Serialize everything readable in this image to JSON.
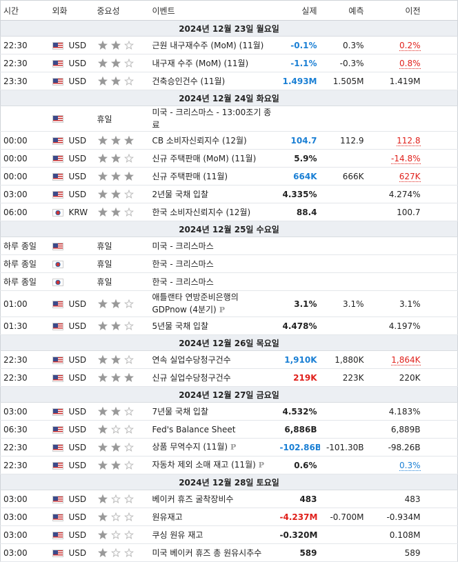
{
  "header": {
    "time": "시간",
    "currency": "외화",
    "importance": "중요성",
    "event": "이벤트",
    "actual": "실제",
    "forecast": "예측",
    "previous": "이전"
  },
  "days": [
    {
      "label": "2024년 12월 23일 월요일",
      "events": [
        {
          "time": "22:30",
          "flag": "us",
          "currency": "USD",
          "importance": 2,
          "event": "근원 내구재수주 (MoM) (11월)",
          "actual": "-0.1%",
          "actual_color": "#1a7fd4",
          "forecast": "0.3%",
          "previous": "0.2%",
          "previous_color": "#e0201b"
        },
        {
          "time": "22:30",
          "flag": "us",
          "currency": "USD",
          "importance": 2,
          "event": "내구재 수주 (MoM) (11월)",
          "actual": "-1.1%",
          "actual_color": "#1a7fd4",
          "forecast": "-0.3%",
          "previous": "0.8%",
          "previous_color": "#e0201b"
        },
        {
          "time": "23:30",
          "flag": "us",
          "currency": "USD",
          "importance": 2,
          "event": "건축승인건수 (11월)",
          "actual": "1.493M",
          "actual_color": "#1a7fd4",
          "forecast": "1.505M",
          "previous": "1.419M"
        }
      ]
    },
    {
      "label": "2024년 12월 24일 화요일",
      "events": [
        {
          "flag": "us",
          "holiday": "휴일",
          "event": "미국 - 크리스마스 - 13:00조기 종료"
        },
        {
          "time": "00:00",
          "flag": "us",
          "currency": "USD",
          "importance": 3,
          "event": "CB 소비자신뢰지수 (12월)",
          "actual": "104.7",
          "actual_color": "#1a7fd4",
          "forecast": "112.9",
          "previous": "112.8",
          "previous_color": "#e0201b"
        },
        {
          "time": "00:00",
          "flag": "us",
          "currency": "USD",
          "importance": 2,
          "event": "신규 주택판매 (MoM) (11월)",
          "actual": "5.9%",
          "previous": "-14.8%",
          "previous_color": "#e0201b"
        },
        {
          "time": "00:00",
          "flag": "us",
          "currency": "USD",
          "importance": 3,
          "event": "신규 주택판매 (11월)",
          "actual": "664K",
          "actual_color": "#1a7fd4",
          "forecast": "666K",
          "previous": "627K",
          "previous_color": "#e0201b"
        },
        {
          "time": "03:00",
          "flag": "us",
          "currency": "USD",
          "importance": 2,
          "event": "2년물 국채 입찰",
          "actual": "4.335%",
          "previous": "4.274%"
        },
        {
          "time": "06:00",
          "flag": "kr",
          "currency": "KRW",
          "importance": 2,
          "event": "한국 소비자신뢰지수 (12월)",
          "actual": "88.4",
          "previous": "100.7"
        }
      ]
    },
    {
      "label": "2024년 12월 25일 수요일",
      "events": [
        {
          "time": "하루 종일",
          "flag": "us",
          "holiday": "휴일",
          "event": "미국 - 크리스마스"
        },
        {
          "time": "하루 종일",
          "flag": "kr",
          "holiday": "휴일",
          "event": "한국 - 크리스마스"
        },
        {
          "time": "하루 종일",
          "flag": "kr",
          "holiday": "휴일",
          "event": "한국 - 크리스마스"
        },
        {
          "time": "01:00",
          "flag": "us",
          "currency": "USD",
          "importance": 2,
          "event": "애틀랜타 연방준비은행의 GDPnow (4분기)",
          "badge": "P",
          "actual": "3.1%",
          "forecast": "3.1%",
          "previous": "3.1%"
        },
        {
          "time": "01:30",
          "flag": "us",
          "currency": "USD",
          "importance": 2,
          "event": "5년물 국채 입찰",
          "actual": "4.478%",
          "previous": "4.197%"
        }
      ]
    },
    {
      "label": "2024년 12월 26일 목요일",
      "events": [
        {
          "time": "22:30",
          "flag": "us",
          "currency": "USD",
          "importance": 2,
          "event": "연속 실업수당청구건수",
          "actual": "1,910K",
          "actual_color": "#1a7fd4",
          "forecast": "1,880K",
          "previous": "1,864K",
          "previous_color": "#e0201b"
        },
        {
          "time": "22:30",
          "flag": "us",
          "currency": "USD",
          "importance": 3,
          "event": "신규 실업수당청구건수",
          "actual": "219K",
          "actual_color": "#e0201b",
          "forecast": "223K",
          "previous": "220K"
        }
      ]
    },
    {
      "label": "2024년 12월 27일 금요일",
      "events": [
        {
          "time": "03:00",
          "flag": "us",
          "currency": "USD",
          "importance": 2,
          "event": "7년물 국채 입찰",
          "actual": "4.532%",
          "previous": "4.183%"
        },
        {
          "time": "06:30",
          "flag": "us",
          "currency": "USD",
          "importance": 1,
          "event": "Fed's Balance Sheet",
          "actual": "6,886B",
          "previous": "6,889B"
        },
        {
          "time": "22:30",
          "flag": "us",
          "currency": "USD",
          "importance": 2,
          "event": "상품 무역수지 (11월)",
          "badge": "P",
          "actual": "-102.86B",
          "actual_color": "#1a7fd4",
          "forecast": "-101.30B",
          "previous": "-98.26B"
        },
        {
          "time": "22:30",
          "flag": "us",
          "currency": "USD",
          "importance": 2,
          "event": "자동차 제외 소매 재고 (11월)",
          "badge": "P",
          "actual": "0.6%",
          "previous": "0.3%",
          "previous_color": "#1a7fd4"
        }
      ]
    },
    {
      "label": "2024년 12월 28일 토요일",
      "events": [
        {
          "time": "03:00",
          "flag": "us",
          "currency": "USD",
          "importance": 1,
          "event": "베이커 휴즈 굴착장비수",
          "actual": "483",
          "previous": "483"
        },
        {
          "time": "03:00",
          "flag": "us",
          "currency": "USD",
          "importance": 1,
          "event": "원유재고",
          "actual": "-4.237M",
          "actual_color": "#e0201b",
          "forecast": "-0.700M",
          "previous": "-0.934M"
        },
        {
          "time": "03:00",
          "flag": "us",
          "currency": "USD",
          "importance": 1,
          "event": "쿠싱 원유 재고",
          "actual": "-0.320M",
          "previous": "0.108M"
        },
        {
          "time": "03:00",
          "flag": "us",
          "currency": "USD",
          "importance": 1,
          "event": "미국 베이커 휴즈 총 원유시추수",
          "actual": "589",
          "previous": "589"
        }
      ]
    }
  ]
}
